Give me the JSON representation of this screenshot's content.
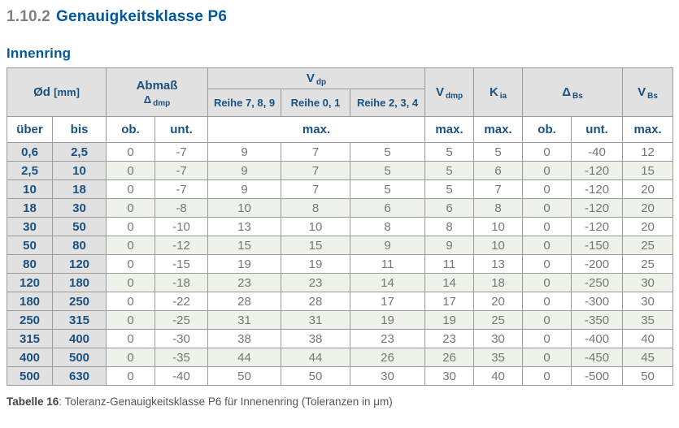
{
  "page": {
    "title_number": "1.10.2",
    "title_text": "Genauigkeitsklasse P6",
    "subtitle": "Innenring",
    "caption_label": "Tabelle 16",
    "caption_text": ": Toleranz-Genauigkeitsklasse P6 für Innenenring (Toleranzen in μm)"
  },
  "colors": {
    "title-gray": "#808080",
    "title-blue": "#00579b",
    "header-blue": "#1b5180",
    "header-bg": "#e1e1e1",
    "row-green": "#edf3ea",
    "border-gray": "#9b9b9b",
    "data-gray": "#767676"
  },
  "table": {
    "headers": {
      "od_main": "Ød",
      "od_unit": "[mm]",
      "abmass_line1": "Abmaß",
      "abmass_sym": "Δ",
      "abmass_sub": "dmp",
      "vdp_main": "V",
      "vdp_sub": "dp",
      "reihe_789": "Reihe 7, 8, 9",
      "reihe_01": "Reihe 0, 1",
      "reihe_234": "Reihe 2, 3, 4",
      "vdmp_main": "V",
      "vdmp_sub": "dmp",
      "kia_main": "K",
      "kia_sub": "ia",
      "dbs_sym": "Δ",
      "dbs_sub": "Bs",
      "vbs_main": "V",
      "vbs_sub": "Bs",
      "sub_ueber": "über",
      "sub_bis": "bis",
      "sub_ob": "ob.",
      "sub_unt": "unt.",
      "sub_max": "max."
    },
    "rows": [
      [
        "0,6",
        "2,5",
        "0",
        "-7",
        "9",
        "7",
        "5",
        "5",
        "5",
        "0",
        "-40",
        "12"
      ],
      [
        "2,5",
        "10",
        "0",
        "-7",
        "9",
        "7",
        "5",
        "5",
        "6",
        "0",
        "-120",
        "15"
      ],
      [
        "10",
        "18",
        "0",
        "-7",
        "9",
        "7",
        "5",
        "5",
        "7",
        "0",
        "-120",
        "20"
      ],
      [
        "18",
        "30",
        "0",
        "-8",
        "10",
        "8",
        "6",
        "6",
        "8",
        "0",
        "-120",
        "20"
      ],
      [
        "30",
        "50",
        "0",
        "-10",
        "13",
        "10",
        "8",
        "8",
        "10",
        "0",
        "-120",
        "20"
      ],
      [
        "50",
        "80",
        "0",
        "-12",
        "15",
        "15",
        "9",
        "9",
        "10",
        "0",
        "-150",
        "25"
      ],
      [
        "80",
        "120",
        "0",
        "-15",
        "19",
        "19",
        "11",
        "11",
        "13",
        "0",
        "-200",
        "25"
      ],
      [
        "120",
        "180",
        "0",
        "-18",
        "23",
        "23",
        "14",
        "14",
        "18",
        "0",
        "-250",
        "30"
      ],
      [
        "180",
        "250",
        "0",
        "-22",
        "28",
        "28",
        "17",
        "17",
        "20",
        "0",
        "-300",
        "30"
      ],
      [
        "250",
        "315",
        "0",
        "-25",
        "31",
        "31",
        "19",
        "19",
        "25",
        "0",
        "-350",
        "35"
      ],
      [
        "315",
        "400",
        "0",
        "-30",
        "38",
        "38",
        "23",
        "23",
        "30",
        "0",
        "-400",
        "40"
      ],
      [
        "400",
        "500",
        "0",
        "-35",
        "44",
        "44",
        "26",
        "26",
        "35",
        "0",
        "-450",
        "45"
      ],
      [
        "500",
        "630",
        "0",
        "-40",
        "50",
        "50",
        "30",
        "30",
        "40",
        "0",
        "-500",
        "50"
      ]
    ]
  }
}
